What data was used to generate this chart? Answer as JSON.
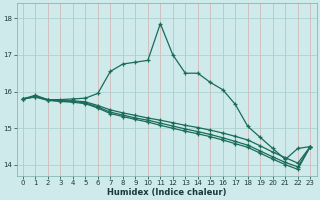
{
  "xlabel": "Humidex (Indice chaleur)",
  "xlim": [
    -0.5,
    23.5
  ],
  "ylim": [
    13.7,
    18.4
  ],
  "yticks": [
    14,
    15,
    16,
    17,
    18
  ],
  "xticks": [
    0,
    1,
    2,
    3,
    4,
    5,
    6,
    7,
    8,
    9,
    10,
    11,
    12,
    13,
    14,
    15,
    16,
    17,
    18,
    19,
    20,
    21,
    22,
    23
  ],
  "background_color": "#ceeaea",
  "grid_color": "#a8cecc",
  "line_color": "#1a6b5a",
  "lines": [
    [
      15.8,
      15.9,
      15.78,
      15.78,
      15.8,
      15.82,
      15.95,
      16.55,
      16.75,
      16.8,
      16.85,
      17.85,
      17.0,
      16.5,
      16.5,
      16.25,
      16.05,
      15.65,
      15.05,
      14.75,
      14.45,
      14.15,
      14.45,
      14.5
    ],
    [
      15.8,
      15.87,
      15.78,
      15.75,
      15.75,
      15.72,
      15.62,
      15.5,
      15.42,
      15.35,
      15.28,
      15.22,
      15.15,
      15.08,
      15.02,
      14.95,
      14.87,
      14.78,
      14.68,
      14.52,
      14.35,
      14.2,
      14.05,
      14.5
    ],
    [
      15.8,
      15.86,
      15.77,
      15.74,
      15.73,
      15.69,
      15.58,
      15.44,
      15.36,
      15.28,
      15.22,
      15.14,
      15.06,
      14.98,
      14.91,
      14.83,
      14.74,
      14.64,
      14.54,
      14.38,
      14.22,
      14.07,
      13.95,
      14.5
    ],
    [
      15.8,
      15.85,
      15.76,
      15.73,
      15.71,
      15.67,
      15.55,
      15.4,
      15.32,
      15.24,
      15.17,
      15.08,
      15.0,
      14.92,
      14.85,
      14.77,
      14.68,
      14.58,
      14.48,
      14.32,
      14.16,
      14.01,
      13.88,
      14.5
    ]
  ]
}
